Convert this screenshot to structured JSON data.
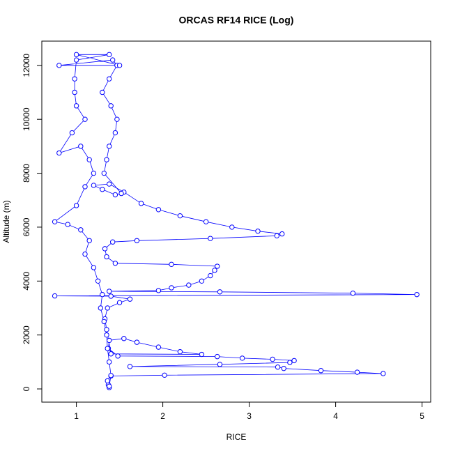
{
  "chart_data": {
    "type": "line",
    "title": "ORCAS RF14 RICE (Log)",
    "x_label": "RICE",
    "y_label": "Altitude (m)",
    "color": "#0000ff",
    "markers": true,
    "xlim": [
      0.6,
      5.1
    ],
    "ylim": [
      -490,
      12900
    ],
    "xticks": [
      1,
      2,
      3,
      4,
      5
    ],
    "yticks": [
      0,
      2000,
      4000,
      6000,
      8000,
      10000,
      12000
    ],
    "x": [
      1.38,
      1.37,
      1.36,
      1.4,
      2.02,
      4.55,
      4.25,
      3.83,
      3.4,
      3.33,
      1.62,
      2.66,
      3.47,
      3.52,
      3.27,
      2.92,
      2.63,
      1.48,
      1.37,
      1.38,
      1.55,
      1.7,
      1.95,
      2.2,
      2.45,
      1.4,
      1.35,
      1.33,
      1.36,
      1.5,
      1.62,
      1.4,
      0.75,
      4.94,
      4.2,
      2.66,
      1.38,
      1.95,
      2.1,
      2.3,
      2.45,
      2.55,
      2.6,
      2.63,
      2.1,
      1.45,
      1.35,
      1.33,
      1.42,
      1.7,
      2.55,
      3.32,
      3.38,
      3.1,
      2.8,
      2.5,
      2.2,
      1.95,
      1.75,
      1.55,
      1.38,
      1.2,
      1.3,
      1.45,
      1.52,
      1.32,
      1.35,
      1.38,
      1.45,
      1.47,
      1.4,
      1.3,
      1.38,
      1.47,
      1.42,
      0.8,
      1.5,
      1.0,
      1.38,
      1.0,
      0.98,
      0.98,
      1.0,
      1.1,
      0.95,
      0.8,
      1.05,
      1.15,
      1.2,
      1.1,
      1.0,
      0.75,
      0.9,
      1.05,
      1.15,
      1.1,
      1.2,
      1.25,
      1.3,
      1.28,
      1.32,
      1.35,
      1.36,
      1.38,
      1.4,
      1.38
    ],
    "values": [
      50,
      150,
      300,
      480,
      510,
      570,
      620,
      680,
      760,
      810,
      830,
      910,
      980,
      1050,
      1100,
      1140,
      1200,
      1220,
      1500,
      1800,
      1870,
      1730,
      1550,
      1380,
      1280,
      1300,
      2200,
      2600,
      3000,
      3200,
      3330,
      3440,
      3450,
      3500,
      3550,
      3600,
      3620,
      3650,
      3750,
      3850,
      4000,
      4200,
      4400,
      4550,
      4620,
      4660,
      4900,
      5200,
      5450,
      5500,
      5580,
      5680,
      5750,
      5850,
      6000,
      6200,
      6420,
      6650,
      6880,
      7300,
      7600,
      7550,
      7400,
      7200,
      7250,
      8000,
      8500,
      9000,
      9500,
      10000,
      10500,
      11000,
      11500,
      12000,
      12200,
      12000,
      12000,
      12400,
      12400,
      12200,
      11500,
      11000,
      10500,
      10000,
      9500,
      8750,
      9000,
      8500,
      8000,
      7500,
      6800,
      6200,
      6100,
      5900,
      5500,
      5000,
      4500,
      4000,
      3500,
      3000,
      2500,
      2000,
      1500,
      1000,
      500,
      100
    ]
  }
}
